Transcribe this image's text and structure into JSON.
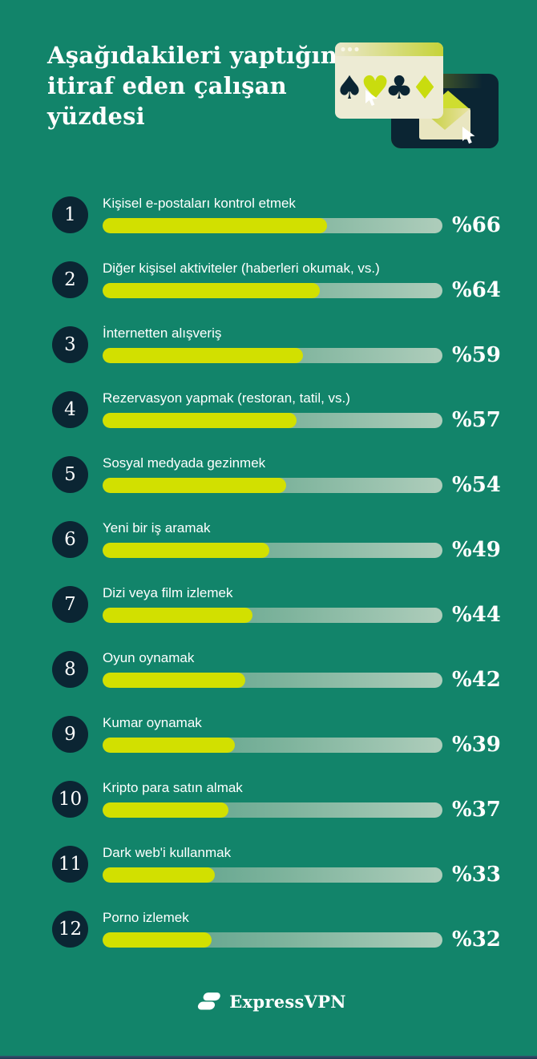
{
  "header": {
    "title": "Aşağıdakileri yaptığını itiraf eden çalışan yüzdesi",
    "title_lines": [
      "Aşağıdakileri yaptığını",
      "itiraf eden çalışan",
      "yüzdesi"
    ]
  },
  "chart_data": {
    "type": "bar",
    "orientation": "horizontal",
    "title": "Aşağıdakileri yaptığını itiraf eden çalışan yüzdesi",
    "value_prefix": "%",
    "xlim": [
      0,
      100
    ],
    "grid": false,
    "legend": false,
    "categories": [
      "Kişisel e-postaları kontrol etmek",
      "Diğer kişisel aktiviteler (haberleri okumak, vs.)",
      "İnternetten alışveriş",
      "Rezervasyon yapmak (restoran, tatil, vs.)",
      "Sosyal medyada gezinmek",
      "Yeni bir iş aramak",
      "Dizi veya film izlemek",
      "Oyun oynamak",
      "Kumar oynamak",
      "Kripto para satın almak",
      "Dark web'i kullanmak",
      "Porno izlemek"
    ],
    "values": [
      66,
      64,
      59,
      57,
      54,
      49,
      44,
      42,
      39,
      37,
      33,
      32
    ],
    "value_labels": [
      "%66",
      "%64",
      "%59",
      "%57",
      "%54",
      "%49",
      "%44",
      "%42",
      "%39",
      "%37",
      "%33",
      "%32"
    ],
    "colors": {
      "background": "#12846A",
      "bar_fill": "#D2E000",
      "track_gradient": [
        "#4E9A84",
        "#AECDBB"
      ],
      "badge": "#0B2533",
      "text": "#FFFFFF"
    }
  },
  "rows": [
    {
      "rank": "1",
      "label": "Kişisel e-postaları kontrol etmek",
      "value": 66,
      "value_label": "%66"
    },
    {
      "rank": "2",
      "label": "Diğer kişisel aktiviteler (haberleri okumak, vs.)",
      "value": 64,
      "value_label": "%64"
    },
    {
      "rank": "3",
      "label": "İnternetten alışveriş",
      "value": 59,
      "value_label": "%59"
    },
    {
      "rank": "4",
      "label": "Rezervasyon yapmak (restoran, tatil, vs.)",
      "value": 57,
      "value_label": "%57"
    },
    {
      "rank": "5",
      "label": "Sosyal medyada gezinmek",
      "value": 54,
      "value_label": "%54"
    },
    {
      "rank": "6",
      "label": "Yeni bir iş aramak",
      "value": 49,
      "value_label": "%49"
    },
    {
      "rank": "7",
      "label": "Dizi veya film izlemek",
      "value": 44,
      "value_label": "%44"
    },
    {
      "rank": "8",
      "label": "Oyun oynamak",
      "value": 42,
      "value_label": "%42"
    },
    {
      "rank": "9",
      "label": "Kumar oynamak",
      "value": 39,
      "value_label": "%39"
    },
    {
      "rank": "10",
      "label": "Kripto para satın almak",
      "value": 37,
      "value_label": "%37"
    },
    {
      "rank": "11",
      "label": "Dark web'i kullanmak",
      "value": 33,
      "value_label": "%33"
    },
    {
      "rank": "12",
      "label": "Porno izlemek",
      "value": 32,
      "value_label": "%32"
    }
  ],
  "footer": {
    "brand": "ExpressVPN"
  },
  "illustration_icons": [
    "browser-window-icon",
    "spade-icon",
    "heart-icon",
    "club-icon",
    "diamond-icon",
    "cursor-icon",
    "envelope-icon",
    "message-card-icon"
  ]
}
